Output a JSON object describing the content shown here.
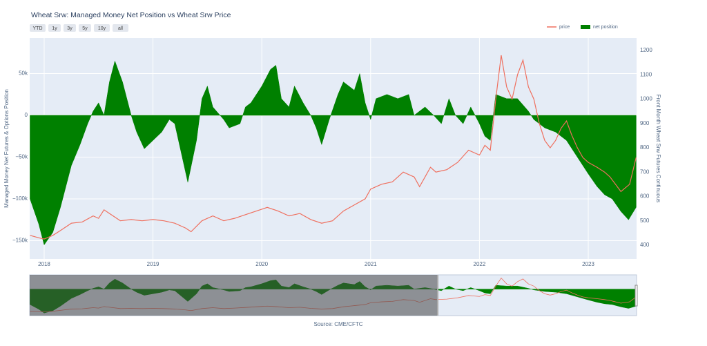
{
  "chart_data": {
    "type": "area-line",
    "title": "Wheat Srw: Managed Money Net Position vs Wheat Srw Price",
    "buttons": [
      "YTD",
      "1y",
      "3y",
      "5y",
      "10y",
      "all"
    ],
    "y_label": "Managed Money Net Futures & Options Position",
    "y2_label": "Front Month Wheat Srw Futures Continuous",
    "source": "Source: CME/CFTC",
    "xlim": [
      2017.867,
      2023.444
    ],
    "xticks": [
      2018,
      2019,
      2020,
      2021,
      2022,
      2023
    ],
    "ylim": [
      -171900,
      92600
    ],
    "yticks": [
      {
        "value": 50000,
        "label": "50k"
      },
      0,
      {
        "value": -50000,
        "label": "−50k"
      },
      {
        "value": -100000,
        "label": "−100k"
      },
      {
        "value": -150000,
        "label": "−150k"
      }
    ],
    "y2lim": [
      343,
      1251
    ],
    "y2ticks": [
      400,
      500,
      600,
      700,
      800,
      900,
      1000,
      1100,
      1200
    ],
    "grid": true,
    "legend": "top-right",
    "series": [
      {
        "name": "price",
        "color": "#ef6f5e",
        "axis": "y2",
        "x": [
          2017.87,
          2017.95,
          2018.0,
          2018.08,
          2018.15,
          2018.25,
          2018.35,
          2018.45,
          2018.5,
          2018.55,
          2018.6,
          2018.7,
          2018.8,
          2018.9,
          2019.0,
          2019.1,
          2019.2,
          2019.3,
          2019.35,
          2019.45,
          2019.55,
          2019.65,
          2019.75,
          2019.85,
          2019.95,
          2020.05,
          2020.15,
          2020.25,
          2020.35,
          2020.45,
          2020.55,
          2020.65,
          2020.75,
          2020.85,
          2020.95,
          2021.0,
          2021.1,
          2021.2,
          2021.3,
          2021.4,
          2021.45,
          2021.55,
          2021.6,
          2021.7,
          2021.8,
          2021.9,
          2022.0,
          2022.05,
          2022.1,
          2022.15,
          2022.2,
          2022.25,
          2022.3,
          2022.35,
          2022.4,
          2022.45,
          2022.5,
          2022.55,
          2022.6,
          2022.65,
          2022.7,
          2022.75,
          2022.8,
          2022.85,
          2022.9,
          2022.95,
          2023.0,
          2023.08,
          2023.15,
          2023.2,
          2023.3,
          2023.38,
          2023.44
        ],
        "values": [
          440,
          430,
          425,
          440,
          460,
          490,
          495,
          520,
          510,
          545,
          530,
          500,
          505,
          500,
          505,
          500,
          490,
          470,
          455,
          500,
          520,
          500,
          510,
          525,
          540,
          555,
          540,
          520,
          530,
          505,
          490,
          500,
          540,
          565,
          590,
          630,
          650,
          660,
          700,
          680,
          640,
          720,
          700,
          710,
          740,
          790,
          770,
          810,
          790,
          1000,
          1180,
          1050,
          1000,
          1100,
          1160,
          1050,
          1000,
          900,
          830,
          800,
          830,
          880,
          910,
          850,
          800,
          760,
          740,
          720,
          700,
          680,
          620,
          650,
          760
        ]
      },
      {
        "name": "net position",
        "color": "#008000",
        "x": [
          2017.87,
          2017.95,
          2018.0,
          2018.08,
          2018.15,
          2018.25,
          2018.33,
          2018.4,
          2018.45,
          2018.5,
          2018.55,
          2018.6,
          2018.65,
          2018.72,
          2018.8,
          2018.85,
          2018.92,
          2019.0,
          2019.08,
          2019.15,
          2019.2,
          2019.32,
          2019.4,
          2019.45,
          2019.5,
          2019.55,
          2019.65,
          2019.7,
          2019.8,
          2019.85,
          2019.9,
          2020.0,
          2020.08,
          2020.13,
          2020.18,
          2020.25,
          2020.3,
          2020.38,
          2020.45,
          2020.5,
          2020.55,
          2020.62,
          2020.7,
          2020.75,
          2020.85,
          2020.9,
          2020.95,
          2021.0,
          2021.05,
          2021.15,
          2021.25,
          2021.35,
          2021.4,
          2021.5,
          2021.58,
          2021.65,
          2021.72,
          2021.78,
          2021.85,
          2021.92,
          2022.0,
          2022.05,
          2022.1,
          2022.15,
          2022.25,
          2022.35,
          2022.45,
          2022.5,
          2022.6,
          2022.7,
          2022.8,
          2022.9,
          2023.0,
          2023.08,
          2023.15,
          2023.22,
          2023.3,
          2023.37,
          2023.44
        ],
        "values": [
          -100000,
          -130000,
          -155000,
          -140000,
          -110000,
          -60000,
          -35000,
          -10000,
          5000,
          15000,
          0,
          40000,
          65000,
          40000,
          0,
          -20000,
          -40000,
          -30000,
          -20000,
          -5000,
          -10000,
          -80000,
          -30000,
          20000,
          35000,
          10000,
          -5000,
          -15000,
          -10000,
          10000,
          15000,
          35000,
          55000,
          60000,
          20000,
          10000,
          35000,
          15000,
          0,
          -15000,
          -35000,
          -5000,
          25000,
          40000,
          30000,
          50000,
          15000,
          -5000,
          20000,
          25000,
          20000,
          25000,
          0,
          10000,
          0,
          -10000,
          20000,
          0,
          -10000,
          10000,
          -10000,
          -25000,
          -30000,
          25000,
          20000,
          20000,
          5000,
          -5000,
          -15000,
          -20000,
          -30000,
          -50000,
          -70000,
          -85000,
          -95000,
          -100000,
          -115000,
          -125000,
          -110000
        ]
      }
    ]
  }
}
